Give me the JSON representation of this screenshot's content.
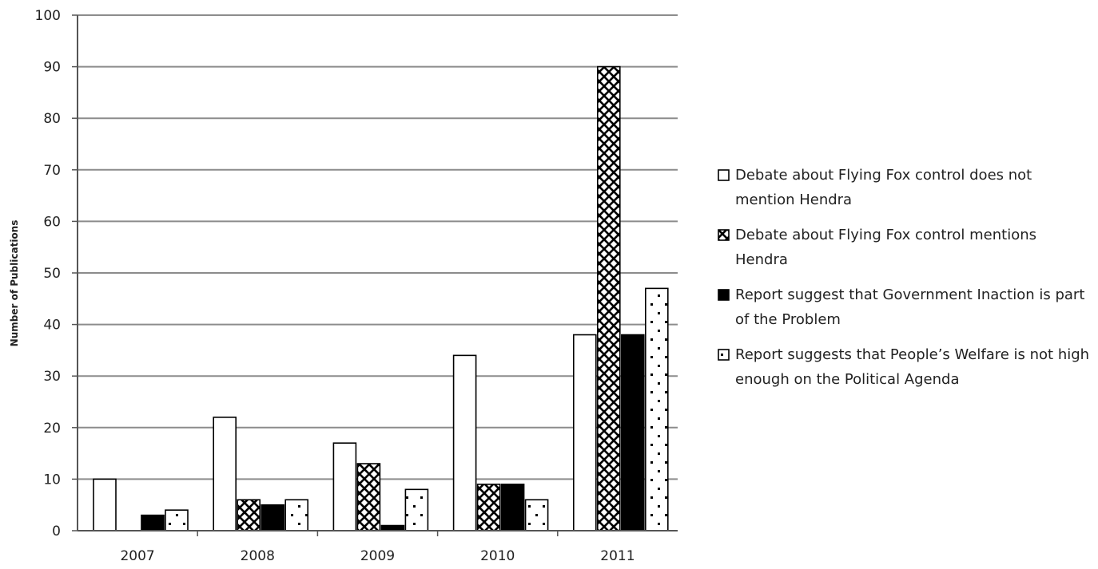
{
  "chart_data": {
    "type": "bar",
    "title": "",
    "xlabel": "",
    "ylabel": "Number of Publications",
    "ylim": [
      0,
      100
    ],
    "yticks": [
      "0",
      "10",
      "20",
      "30",
      "40",
      "50",
      "60",
      "70",
      "80",
      "90",
      "100"
    ],
    "grid": true,
    "legend_position": "right",
    "categories": [
      "2007",
      "2008",
      "2009",
      "2010",
      "2011"
    ],
    "series": [
      {
        "name": "Debate about Flying Fox control does not mention Hendra",
        "pattern": "white",
        "values": [
          10,
          22,
          17,
          34,
          38
        ]
      },
      {
        "name": "Debate about Flying Fox control mentions Hendra",
        "pattern": "crosshatch",
        "values": [
          0,
          6,
          13,
          9,
          90
        ]
      },
      {
        "name": "Report suggest that Government Inaction is part of the Problem",
        "pattern": "black",
        "values": [
          3,
          5,
          1,
          9,
          38
        ]
      },
      {
        "name": "Report suggests that People’s Welfare is not high enough on the Political Agenda",
        "pattern": "dots",
        "values": [
          4,
          6,
          8,
          6,
          47
        ]
      }
    ]
  }
}
